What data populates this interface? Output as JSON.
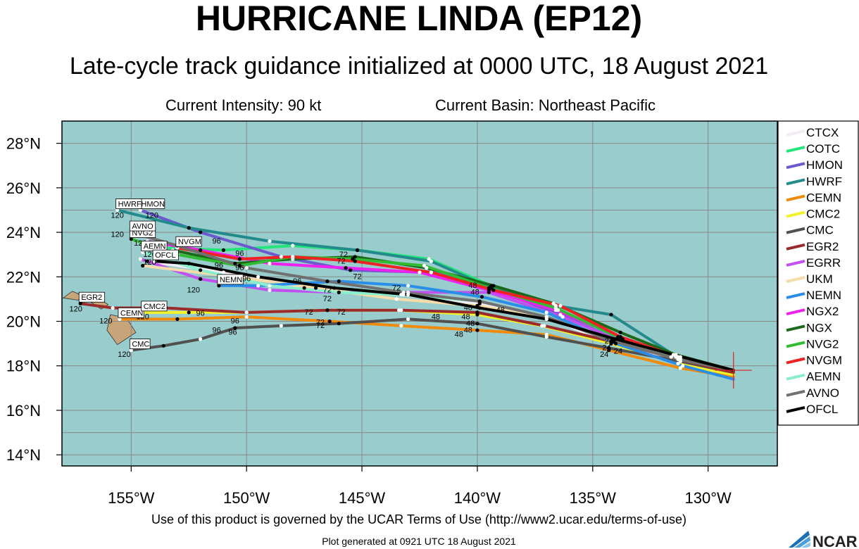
{
  "title": "HURRICANE LINDA (EP12)",
  "subtitle": "Late-cycle track guidance initialized at 0000 UTC, 18 August 2021",
  "intensity_text": "Current Intensity: 90 kt",
  "basin_text": "Current Basin: Northeast Pacific",
  "terms_text": "Use of this product is governed by the UCAR Terms of Use (http://www2.ucar.edu/terms-of-use)",
  "generated_text": "Plot generated at 0921 UTC   18 August 2021",
  "logo_text": "NCAR",
  "colors": {
    "ocean": "#99cccc",
    "land": "#c8a47a",
    "grid": "#888888"
  },
  "chart_data": {
    "type": "line",
    "title": "HURRICANE LINDA (EP12)",
    "xlabel": "",
    "ylabel": "",
    "xlim": [
      -158,
      -127
    ],
    "ylim": [
      13.5,
      29
    ],
    "grid": true,
    "legend_position": "right",
    "x_ticks": [
      -155,
      -150,
      -145,
      -140,
      -135,
      -130
    ],
    "x_tick_labels": [
      "155°W",
      "150°W",
      "145°W",
      "140°W",
      "135°W",
      "130°W"
    ],
    "y_ticks": [
      14,
      16,
      18,
      20,
      22,
      24,
      26,
      28
    ],
    "y_tick_labels": [
      "14°N",
      "16°N",
      "18°N",
      "20°N",
      "22°N",
      "24°N",
      "26°N",
      "28°N"
    ],
    "initial_position": {
      "lon": -128.9,
      "lat": 17.8
    },
    "series": [
      {
        "name": "CTCX",
        "color": "#f2ecf4",
        "label": "",
        "points": [
          [
            -128.9,
            17.8
          ],
          [
            -131.2,
            18.3
          ],
          [
            -134.2,
            19.0
          ],
          [
            -137.0,
            20.2
          ],
          [
            -139.9,
            20.8
          ],
          [
            -143.3,
            21.2
          ],
          [
            -147.5,
            21.5
          ],
          [
            -151.0,
            22.2
          ],
          [
            -154.3,
            22.7
          ]
        ]
      },
      {
        "name": "COTC",
        "color": "#22e67a",
        "label": "",
        "points": [
          [
            -128.9,
            17.8
          ],
          [
            -131.4,
            18.4
          ],
          [
            -133.7,
            19.2
          ],
          [
            -136.5,
            20.5
          ],
          [
            -139.4,
            21.6
          ],
          [
            -142.1,
            22.8
          ],
          [
            -145.2,
            23.2
          ],
          [
            -148.0,
            23.4
          ],
          [
            -151.0,
            23.2
          ],
          [
            -153.5,
            23.3
          ]
        ]
      },
      {
        "name": "HMON",
        "color": "#6a5acd",
        "label": "HMON",
        "points": [
          [
            -128.9,
            17.8
          ],
          [
            -131.6,
            18.4
          ],
          [
            -134.0,
            19.2
          ],
          [
            -136.4,
            20.3
          ],
          [
            -139.4,
            21.5
          ],
          [
            -142.0,
            22.2
          ],
          [
            -145.5,
            22.3
          ],
          [
            -148.5,
            22.9
          ],
          [
            -152.0,
            24.0
          ],
          [
            -154.6,
            25.0
          ]
        ]
      },
      {
        "name": "HWRF",
        "color": "#238b8b",
        "label": "HWRF",
        "points": [
          [
            -128.9,
            17.8
          ],
          [
            -131.5,
            18.5
          ],
          [
            -134.2,
            20.3
          ],
          [
            -136.6,
            20.7
          ],
          [
            -139.4,
            21.5
          ],
          [
            -142.0,
            22.7
          ],
          [
            -145.2,
            23.2
          ],
          [
            -149.0,
            23.6
          ],
          [
            -152.5,
            24.2
          ],
          [
            -155.6,
            25.0
          ]
        ]
      },
      {
        "name": "CEMN",
        "color": "#f08a0a",
        "label": "CEMN",
        "points": [
          [
            -128.9,
            17.5
          ],
          [
            -131.2,
            17.9
          ],
          [
            -134.3,
            18.7
          ],
          [
            -137.0,
            19.4
          ],
          [
            -140.0,
            19.6
          ],
          [
            -143.3,
            19.8
          ],
          [
            -146.4,
            20.0
          ],
          [
            -150.0,
            20.2
          ],
          [
            -153.0,
            20.1
          ],
          [
            -155.5,
            20.1
          ]
        ]
      },
      {
        "name": "CMC2",
        "color": "#f2f22a",
        "label": "CMC2",
        "points": [
          [
            -128.9,
            17.6
          ],
          [
            -131.3,
            18.1
          ],
          [
            -134.2,
            19.0
          ],
          [
            -137.2,
            19.8
          ],
          [
            -140.0,
            20.3
          ],
          [
            -143.4,
            20.5
          ],
          [
            -146.5,
            20.5
          ],
          [
            -150.0,
            20.4
          ],
          [
            -152.5,
            20.4
          ],
          [
            -154.5,
            20.4
          ]
        ]
      },
      {
        "name": "CMC",
        "color": "#505050",
        "label": "CMC",
        "points": [
          [
            -128.9,
            17.7
          ],
          [
            -131.2,
            18.2
          ],
          [
            -134.3,
            18.8
          ],
          [
            -137.0,
            19.3
          ],
          [
            -140.0,
            19.9
          ],
          [
            -143.0,
            20.1
          ],
          [
            -146.0,
            19.9
          ],
          [
            -148.5,
            19.8
          ],
          [
            -150.5,
            19.7
          ],
          [
            -152.0,
            19.2
          ],
          [
            -153.6,
            18.9
          ],
          [
            -155.0,
            18.7
          ]
        ]
      },
      {
        "name": "EGR2",
        "color": "#9b2a2a",
        "label": "EGR2",
        "points": [
          [
            -128.9,
            17.7
          ],
          [
            -131.3,
            18.3
          ],
          [
            -134.2,
            19.1
          ],
          [
            -137.1,
            19.8
          ],
          [
            -140.0,
            20.4
          ],
          [
            -143.3,
            20.5
          ],
          [
            -146.5,
            20.5
          ],
          [
            -150.0,
            20.4
          ],
          [
            -153.5,
            20.6
          ],
          [
            -155.8,
            20.6
          ],
          [
            -157.2,
            20.8
          ]
        ]
      },
      {
        "name": "EGRR",
        "color": "#c050f0",
        "label": "",
        "points": [
          [
            -128.9,
            17.8
          ],
          [
            -131.3,
            18.4
          ],
          [
            -134.0,
            19.2
          ],
          [
            -136.3,
            20.2
          ],
          [
            -139.5,
            21.3
          ],
          [
            -143.0,
            21.3
          ],
          [
            -146.0,
            21.3
          ],
          [
            -149.0,
            21.4
          ],
          [
            -152.0,
            21.9
          ],
          [
            -154.6,
            22.8
          ]
        ]
      },
      {
        "name": "UKM",
        "color": "#f6dca8",
        "label": "",
        "points": [
          [
            -128.9,
            17.8
          ],
          [
            -131.2,
            18.4
          ],
          [
            -134.1,
            19.1
          ],
          [
            -137.0,
            20.2
          ],
          [
            -140.0,
            20.7
          ],
          [
            -143.5,
            21.0
          ],
          [
            -147.0,
            21.5
          ],
          [
            -150.5,
            22.0
          ],
          [
            -154.5,
            22.5
          ]
        ]
      },
      {
        "name": "NEMN",
        "color": "#2a8ee8",
        "label": "NEMN",
        "points": [
          [
            -128.9,
            17.4
          ],
          [
            -131.1,
            18.0
          ],
          [
            -134.0,
            19.0
          ],
          [
            -137.0,
            20.4
          ],
          [
            -139.8,
            21.1
          ],
          [
            -143.0,
            21.6
          ],
          [
            -146.0,
            21.8
          ],
          [
            -149.5,
            21.6
          ],
          [
            -151.2,
            21.6
          ]
        ]
      },
      {
        "name": "NGX2",
        "color": "#ee22ee",
        "label": "",
        "points": [
          [
            -128.9,
            17.8
          ],
          [
            -131.3,
            18.4
          ],
          [
            -133.8,
            19.3
          ],
          [
            -136.6,
            20.5
          ],
          [
            -139.5,
            21.4
          ],
          [
            -142.5,
            22.2
          ],
          [
            -145.7,
            22.4
          ],
          [
            -149.0,
            22.6
          ],
          [
            -152.0,
            23.2
          ],
          [
            -154.3,
            23.6
          ]
        ]
      },
      {
        "name": "NGX",
        "color": "#1a6a1a",
        "label": "",
        "points": [
          [
            -128.9,
            17.8
          ],
          [
            -131.4,
            18.5
          ],
          [
            -133.8,
            19.5
          ],
          [
            -136.7,
            20.8
          ],
          [
            -139.3,
            21.6
          ],
          [
            -142.2,
            22.4
          ],
          [
            -145.3,
            22.9
          ],
          [
            -148.0,
            22.8
          ],
          [
            -150.5,
            22.6
          ],
          [
            -153.2,
            23.2
          ]
        ]
      },
      {
        "name": "NVG2",
        "color": "#33bb33",
        "label": "NVG2",
        "points": [
          [
            -128.9,
            17.8
          ],
          [
            -131.3,
            18.4
          ],
          [
            -133.9,
            19.3
          ],
          [
            -136.6,
            20.6
          ],
          [
            -139.5,
            21.5
          ],
          [
            -142.3,
            22.5
          ],
          [
            -145.4,
            22.8
          ],
          [
            -148.0,
            22.9
          ],
          [
            -150.3,
            22.5
          ],
          [
            -153.0,
            23.0
          ],
          [
            -155.0,
            23.7
          ]
        ]
      },
      {
        "name": "NVGM",
        "color": "#ee2222",
        "label": "NVGM",
        "points": [
          [
            -128.9,
            17.8
          ],
          [
            -131.3,
            18.4
          ],
          [
            -133.8,
            19.3
          ],
          [
            -136.4,
            20.7
          ],
          [
            -139.3,
            21.4
          ],
          [
            -142.0,
            22.2
          ],
          [
            -145.3,
            22.7
          ],
          [
            -148.0,
            22.9
          ],
          [
            -150.3,
            22.8
          ],
          [
            -153.0,
            23.3
          ]
        ]
      },
      {
        "name": "AEMN",
        "color": "#88eecc",
        "label": "AEMN",
        "points": [
          [
            -128.9,
            17.8
          ],
          [
            -131.3,
            18.3
          ],
          [
            -134.1,
            19.1
          ],
          [
            -137.0,
            20.2
          ],
          [
            -139.9,
            20.9
          ],
          [
            -143.2,
            21.2
          ],
          [
            -146.0,
            21.3
          ],
          [
            -149.0,
            21.6
          ],
          [
            -152.0,
            22.3
          ],
          [
            -154.5,
            23.1
          ]
        ]
      },
      {
        "name": "AVNO",
        "color": "#707070",
        "label": "AVNO",
        "points": [
          [
            -128.9,
            17.8
          ],
          [
            -131.3,
            18.3
          ],
          [
            -134.1,
            19.1
          ],
          [
            -137.0,
            20.2
          ],
          [
            -139.9,
            20.9
          ],
          [
            -143.2,
            21.3
          ],
          [
            -146.5,
            21.8
          ],
          [
            -150.0,
            22.4
          ],
          [
            -153.0,
            23.4
          ],
          [
            -155.0,
            24.0
          ]
        ]
      },
      {
        "name": "OFCL",
        "color": "#000000",
        "label": "OFCL",
        "points": [
          [
            -128.9,
            17.8
          ],
          [
            -131.5,
            18.5
          ],
          [
            -134.0,
            19.2
          ],
          [
            -137.0,
            20.1
          ],
          [
            -139.9,
            20.6
          ],
          [
            -143.0,
            21.2
          ],
          [
            -146.2,
            21.5
          ],
          [
            -149.5,
            22.0
          ],
          [
            -152.5,
            22.6
          ],
          [
            -154.0,
            22.7
          ]
        ]
      }
    ],
    "point_labels": [
      {
        "text": "120",
        "lon": -155.6,
        "lat": 24.65
      },
      {
        "text": "120",
        "lon": -154.1,
        "lat": 24.65
      },
      {
        "text": "120",
        "lon": -155.6,
        "lat": 23.8
      },
      {
        "text": "120",
        "lon": -154.6,
        "lat": 23.4
      },
      {
        "text": "120",
        "lon": -154.2,
        "lat": 22.9
      },
      {
        "text": "120",
        "lon": -154.2,
        "lat": 22.55
      },
      {
        "text": "120",
        "lon": -152.3,
        "lat": 21.3
      },
      {
        "text": "120",
        "lon": -157.4,
        "lat": 20.45
      },
      {
        "text": "120",
        "lon": -156.1,
        "lat": 19.9
      },
      {
        "text": "120",
        "lon": -154.5,
        "lat": 20.1
      },
      {
        "text": "120",
        "lon": -155.3,
        "lat": 18.4
      },
      {
        "text": "96",
        "lon": -151.3,
        "lat": 23.5
      },
      {
        "text": "96",
        "lon": -150.3,
        "lat": 22.95
      },
      {
        "text": "96",
        "lon": -151.2,
        "lat": 22.4
      },
      {
        "text": "96",
        "lon": -150.3,
        "lat": 22.3
      },
      {
        "text": "96",
        "lon": -150.0,
        "lat": 21.8
      },
      {
        "text": "96",
        "lon": -147.8,
        "lat": 21.7
      },
      {
        "text": "96",
        "lon": -152.0,
        "lat": 20.25
      },
      {
        "text": "96",
        "lon": -150.5,
        "lat": 19.9
      },
      {
        "text": "96",
        "lon": -150.6,
        "lat": 19.4
      },
      {
        "text": "96",
        "lon": -151.3,
        "lat": 19.5
      },
      {
        "text": "72",
        "lon": -145.8,
        "lat": 22.9
      },
      {
        "text": "72",
        "lon": -145.9,
        "lat": 22.6
      },
      {
        "text": "72",
        "lon": -145.2,
        "lat": 21.9
      },
      {
        "text": "72",
        "lon": -146.5,
        "lat": 21.3
      },
      {
        "text": "72",
        "lon": -146.5,
        "lat": 20.9
      },
      {
        "text": "72",
        "lon": -143.5,
        "lat": 21.4
      },
      {
        "text": "72",
        "lon": -147.3,
        "lat": 20.3
      },
      {
        "text": "72",
        "lon": -145.9,
        "lat": 20.3
      },
      {
        "text": "72",
        "lon": -146.8,
        "lat": 19.85
      },
      {
        "text": "72",
        "lon": -146.8,
        "lat": 19.7
      },
      {
        "text": "48",
        "lon": -140.2,
        "lat": 21.5
      },
      {
        "text": "48",
        "lon": -140.1,
        "lat": 21.2
      },
      {
        "text": "48",
        "lon": -140.4,
        "lat": 20.5
      },
      {
        "text": "48",
        "lon": -139.0,
        "lat": 20.4
      },
      {
        "text": "48",
        "lon": -140.5,
        "lat": 20.1
      },
      {
        "text": "48",
        "lon": -141.8,
        "lat": 20.1
      },
      {
        "text": "48",
        "lon": -140.3,
        "lat": 19.8
      },
      {
        "text": "48",
        "lon": -140.4,
        "lat": 19.5
      },
      {
        "text": "48",
        "lon": -140.8,
        "lat": 19.3
      },
      {
        "text": "24",
        "lon": -134.3,
        "lat": 19.0
      },
      {
        "text": "24",
        "lon": -134.4,
        "lat": 18.7
      },
      {
        "text": "24",
        "lon": -134.5,
        "lat": 18.4
      },
      {
        "text": "24",
        "lon": -133.9,
        "lat": 18.55
      }
    ],
    "legend": [
      "CTCX",
      "COTC",
      "HMON",
      "HWRF",
      "CEMN",
      "CMC2",
      "CMC",
      "EGR2",
      "EGRR",
      "UKM",
      "NEMN",
      "NGX2",
      "NGX",
      "NVG2",
      "NVGM",
      "AEMN",
      "AVNO",
      "OFCL"
    ]
  }
}
